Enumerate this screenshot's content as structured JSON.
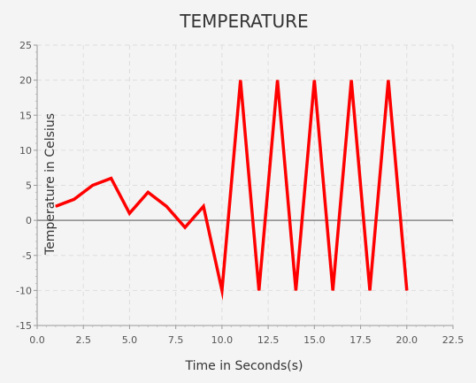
{
  "chart_data": {
    "type": "line",
    "title": "TEMPERATURE",
    "xlabel": "Time in Seconds(s)",
    "ylabel": "Temperature in Celsius",
    "xlim": [
      0,
      22.5
    ],
    "ylim": [
      -15,
      25
    ],
    "x_ticks": [
      "0.0",
      "2.5",
      "5.0",
      "7.5",
      "10.0",
      "12.5",
      "15.0",
      "17.5",
      "20.0",
      "22.5"
    ],
    "y_ticks": [
      "25",
      "20",
      "15",
      "10",
      "5",
      "0",
      "-5",
      "-10",
      "-15"
    ],
    "grid": true,
    "legend": "none",
    "series": [
      {
        "color": "#ff0000",
        "x": [
          1,
          2,
          3,
          4,
          5,
          6,
          7,
          8,
          9,
          10,
          11,
          12,
          13,
          14,
          15,
          16,
          17,
          18,
          19,
          20
        ],
        "y": [
          2,
          3,
          5,
          6,
          1,
          4,
          2,
          -1,
          2,
          -10,
          20,
          -10,
          20,
          -10,
          20,
          -10,
          20,
          -10,
          20,
          -10
        ]
      }
    ]
  }
}
